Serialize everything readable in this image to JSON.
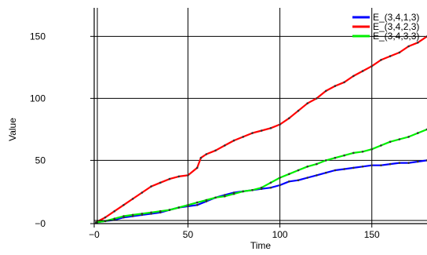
{
  "chart_data": {
    "type": "line",
    "xlabel": "Time",
    "ylabel": "Value",
    "xlim": [
      -1,
      180
    ],
    "ylim": [
      -1,
      173
    ],
    "x_ticks": [
      {
        "value": -1,
        "label": "−0"
      },
      {
        "value": 50,
        "label": "50"
      },
      {
        "value": 100,
        "label": "100"
      },
      {
        "value": 150,
        "label": "150"
      }
    ],
    "y_ticks": [
      {
        "value": -1,
        "label": "−0"
      },
      {
        "value": 50,
        "label": "50"
      },
      {
        "value": 100,
        "label": "100"
      },
      {
        "value": 150,
        "label": "150"
      }
    ],
    "grid": true,
    "legend_position": "top-right",
    "series": [
      {
        "name": "E_(3,4,1,3)",
        "color": "#0000ff",
        "points": [
          [
            0,
            0
          ],
          [
            5,
            1
          ],
          [
            10,
            2
          ],
          [
            15,
            4
          ],
          [
            20,
            5
          ],
          [
            25,
            6
          ],
          [
            30,
            7
          ],
          [
            35,
            8
          ],
          [
            40,
            10
          ],
          [
            45,
            12
          ],
          [
            50,
            13
          ],
          [
            55,
            14
          ],
          [
            60,
            17
          ],
          [
            65,
            20
          ],
          [
            70,
            22
          ],
          [
            75,
            24
          ],
          [
            80,
            25
          ],
          [
            85,
            26
          ],
          [
            90,
            27
          ],
          [
            95,
            28
          ],
          [
            100,
            30
          ],
          [
            105,
            33
          ],
          [
            110,
            34
          ],
          [
            115,
            36
          ],
          [
            120,
            38
          ],
          [
            125,
            40
          ],
          [
            130,
            42
          ],
          [
            135,
            43
          ],
          [
            140,
            44
          ],
          [
            145,
            45
          ],
          [
            150,
            46
          ],
          [
            155,
            46
          ],
          [
            160,
            47
          ],
          [
            165,
            48
          ],
          [
            170,
            48
          ],
          [
            175,
            49
          ],
          [
            180,
            50
          ]
        ]
      },
      {
        "name": "E_(3,4,2,3)",
        "color": "#ff0000",
        "points": [
          [
            0,
            0
          ],
          [
            5,
            4
          ],
          [
            10,
            9
          ],
          [
            15,
            14
          ],
          [
            20,
            19
          ],
          [
            25,
            24
          ],
          [
            30,
            29
          ],
          [
            35,
            32
          ],
          [
            40,
            35
          ],
          [
            45,
            37
          ],
          [
            50,
            38
          ],
          [
            55,
            44
          ],
          [
            57,
            52
          ],
          [
            60,
            55
          ],
          [
            65,
            58
          ],
          [
            70,
            62
          ],
          [
            75,
            66
          ],
          [
            80,
            69
          ],
          [
            85,
            72
          ],
          [
            90,
            74
          ],
          [
            95,
            76
          ],
          [
            100,
            79
          ],
          [
            105,
            84
          ],
          [
            110,
            90
          ],
          [
            115,
            96
          ],
          [
            120,
            100
          ],
          [
            125,
            106
          ],
          [
            130,
            110
          ],
          [
            135,
            113
          ],
          [
            140,
            118
          ],
          [
            145,
            122
          ],
          [
            150,
            126
          ],
          [
            155,
            131
          ],
          [
            160,
            134
          ],
          [
            165,
            137
          ],
          [
            170,
            142
          ],
          [
            175,
            145
          ],
          [
            180,
            150
          ]
        ]
      },
      {
        "name": "E_(3,4,3,3)",
        "color": "#00ee00",
        "points": [
          [
            0,
            0
          ],
          [
            5,
            1
          ],
          [
            10,
            3
          ],
          [
            15,
            5
          ],
          [
            20,
            6
          ],
          [
            25,
            7
          ],
          [
            30,
            8
          ],
          [
            35,
            9
          ],
          [
            40,
            10
          ],
          [
            45,
            12
          ],
          [
            50,
            14
          ],
          [
            55,
            16
          ],
          [
            60,
            18
          ],
          [
            65,
            20
          ],
          [
            70,
            21
          ],
          [
            75,
            23
          ],
          [
            80,
            25
          ],
          [
            85,
            26
          ],
          [
            90,
            28
          ],
          [
            95,
            32
          ],
          [
            100,
            36
          ],
          [
            105,
            39
          ],
          [
            110,
            42
          ],
          [
            115,
            45
          ],
          [
            120,
            47
          ],
          [
            125,
            50
          ],
          [
            130,
            52
          ],
          [
            135,
            54
          ],
          [
            140,
            56
          ],
          [
            145,
            57
          ],
          [
            150,
            59
          ],
          [
            155,
            62
          ],
          [
            160,
            65
          ],
          [
            165,
            67
          ],
          [
            170,
            69
          ],
          [
            175,
            72
          ],
          [
            180,
            75
          ]
        ]
      }
    ]
  }
}
